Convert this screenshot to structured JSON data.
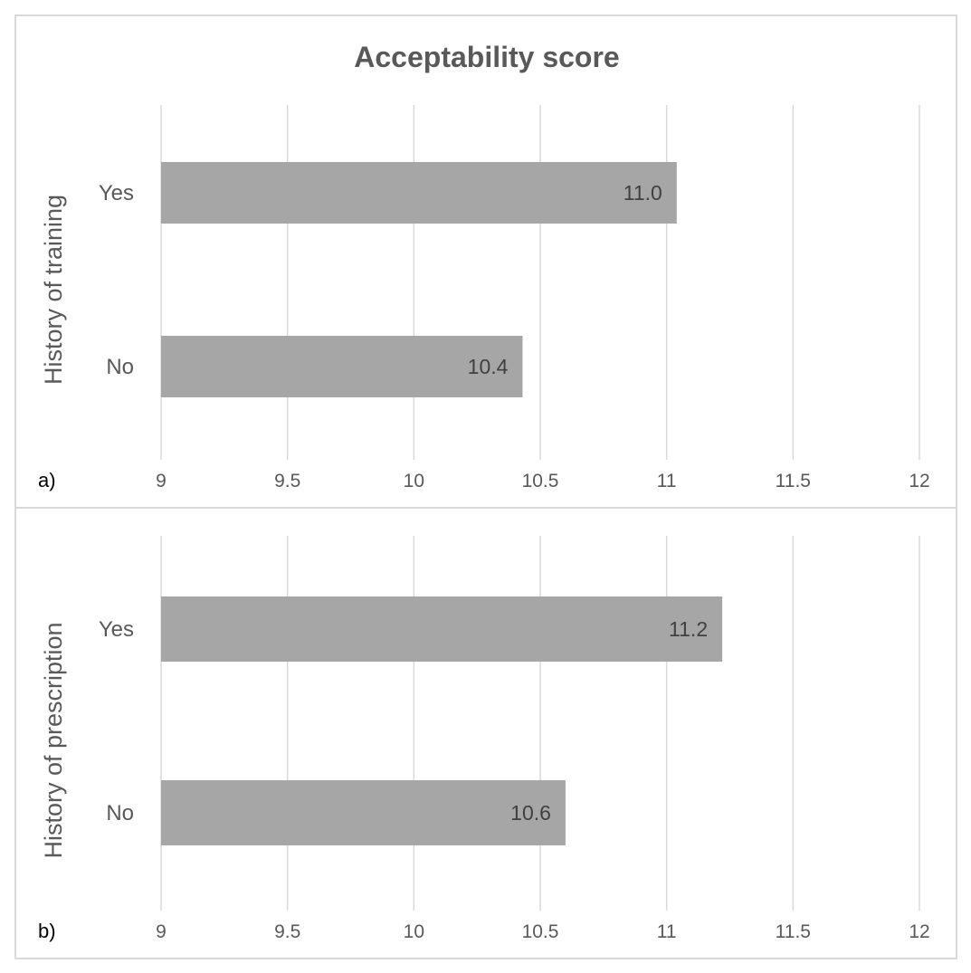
{
  "chart_data": [
    {
      "type": "bar",
      "orientation": "horizontal",
      "panel_label": "a)",
      "title": "Acceptability score",
      "ylabel": "History of training",
      "xlabel": "",
      "categories": [
        "Yes",
        "No"
      ],
      "values": [
        11.04,
        10.43
      ],
      "data_labels": [
        "11.0",
        "10.4"
      ],
      "xlim": [
        9,
        12
      ],
      "xticks": [
        "9",
        "9.5",
        "10",
        "10.5",
        "11",
        "11.5",
        "12"
      ],
      "grid": true,
      "bar_color": "#a6a6a6"
    },
    {
      "type": "bar",
      "orientation": "horizontal",
      "panel_label": "b)",
      "title": "",
      "ylabel": "History of prescription",
      "xlabel": "",
      "categories": [
        "Yes",
        "No"
      ],
      "values": [
        11.22,
        10.6
      ],
      "data_labels": [
        "11.2",
        "10.6"
      ],
      "xlim": [
        9,
        12
      ],
      "xticks": [
        "9",
        "9.5",
        "10",
        "10.5",
        "11",
        "11.5",
        "12"
      ],
      "grid": true,
      "bar_color": "#a6a6a6"
    }
  ]
}
